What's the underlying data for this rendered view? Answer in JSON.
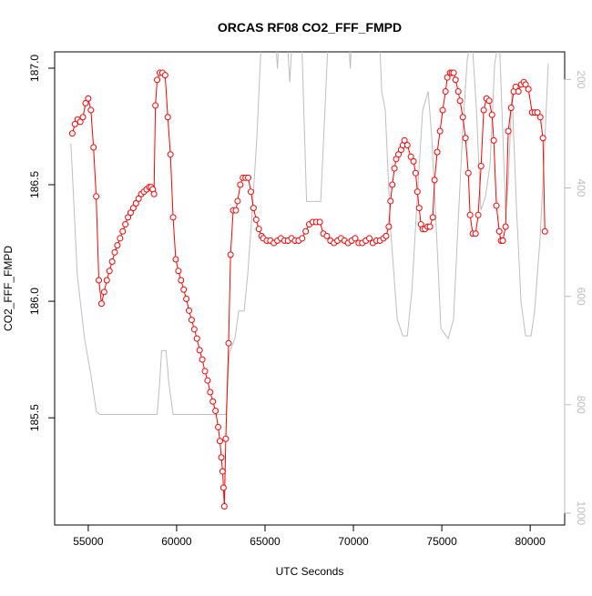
{
  "chart_data": {
    "type": "line",
    "title": "ORCAS RF08 CO2_FFF_FMPD",
    "x_label": "UTC Seconds",
    "y_label": "CO2_FFF_FMPD",
    "xlim": [
      53100,
      81950
    ],
    "xticks": [
      55000,
      60000,
      65000,
      70000,
      75000,
      80000
    ],
    "ylim": [
      185.04,
      187.07
    ],
    "yticks": [
      {
        "value": 185.5,
        "label": "185.5"
      },
      {
        "value": 186,
        "label": "186.0"
      },
      {
        "value": 186.5,
        "label": "186.5"
      },
      {
        "value": 187,
        "label": "187.0"
      }
    ],
    "y2lim": [
      1022,
      149
    ],
    "y2ticks": [
      200,
      400,
      600,
      800,
      1000
    ],
    "series": [
      {
        "color": "#ff0000",
        "markers": true,
        "x": [
          54100,
          54250,
          54400,
          54550,
          54700,
          54850,
          55000,
          55150,
          55300,
          55450,
          55600,
          55750,
          55900,
          56050,
          56200,
          56350,
          56500,
          56650,
          56800,
          56950,
          57100,
          57250,
          57400,
          57550,
          57700,
          57850,
          58000,
          58150,
          58300,
          58450,
          58550,
          58650,
          58720,
          58800,
          58900,
          59050,
          59200,
          59350,
          59500,
          59650,
          59800,
          59950,
          60100,
          60250,
          60400,
          60550,
          60700,
          60850,
          61000,
          61150,
          61300,
          61450,
          61600,
          61750,
          61900,
          62050,
          62200,
          62350,
          62450,
          62530,
          62600,
          62650,
          62700,
          62780,
          62940,
          63050,
          63200,
          63350,
          63450,
          63600,
          63750,
          63900,
          64050,
          64200,
          64350,
          64500,
          64650,
          64800,
          64900,
          65100,
          65300,
          65500,
          65700,
          65900,
          66100,
          66300,
          66500,
          66700,
          66900,
          67100,
          67300,
          67500,
          67700,
          67900,
          68100,
          68300,
          68500,
          68700,
          68900,
          69100,
          69300,
          69500,
          69700,
          69900,
          70100,
          70300,
          70500,
          70700,
          70900,
          71100,
          71300,
          71500,
          71700,
          71850,
          72000,
          72100,
          72200,
          72320,
          72420,
          72550,
          72700,
          72800,
          72890,
          73050,
          73250,
          73400,
          73520,
          73620,
          73720,
          73820,
          73920,
          74050,
          74200,
          74330,
          74490,
          74590,
          74740,
          74900,
          75050,
          75210,
          75310,
          75470,
          75570,
          75670,
          75780,
          75930,
          76030,
          76190,
          76340,
          76500,
          76600,
          76750,
          76910,
          77060,
          77220,
          77370,
          77530,
          77680,
          77840,
          77940,
          78090,
          78250,
          78350,
          78450,
          78610,
          78760,
          78920,
          79070,
          79180,
          79330,
          79490,
          79640,
          79740,
          79900,
          80110,
          80260,
          80410,
          80570,
          80720,
          80830
        ],
        "values": [
          186.72,
          186.76,
          186.78,
          186.77,
          186.79,
          186.85,
          186.87,
          186.82,
          186.66,
          186.45,
          186.09,
          185.99,
          186.04,
          186.09,
          186.13,
          186.17,
          186.21,
          186.24,
          186.27,
          186.3,
          186.33,
          186.36,
          186.38,
          186.4,
          186.42,
          186.44,
          186.46,
          186.47,
          186.48,
          186.49,
          186.49,
          186.48,
          186.46,
          186.84,
          186.95,
          186.98,
          186.98,
          186.97,
          186.79,
          186.63,
          186.36,
          186.18,
          186.13,
          186.09,
          186.05,
          186.01,
          185.96,
          185.92,
          185.88,
          185.84,
          185.79,
          185.75,
          185.7,
          185.66,
          185.61,
          185.57,
          185.53,
          185.46,
          185.4,
          185.33,
          185.27,
          185.2,
          185.12,
          185.41,
          185.82,
          186.2,
          186.39,
          186.39,
          186.43,
          186.5,
          186.53,
          186.53,
          186.53,
          186.47,
          186.4,
          186.35,
          186.31,
          186.28,
          186.27,
          186.26,
          186.26,
          186.25,
          186.26,
          186.27,
          186.26,
          186.26,
          186.27,
          186.26,
          186.26,
          186.27,
          186.3,
          186.33,
          186.34,
          186.34,
          186.34,
          186.29,
          186.28,
          186.26,
          186.25,
          186.26,
          186.27,
          186.26,
          186.25,
          186.26,
          186.27,
          186.25,
          186.25,
          186.26,
          186.27,
          186.25,
          186.26,
          186.26,
          186.27,
          186.28,
          186.32,
          186.43,
          186.5,
          186.57,
          186.61,
          186.63,
          186.65,
          186.67,
          186.69,
          186.67,
          186.62,
          186.6,
          186.55,
          186.47,
          186.4,
          186.33,
          186.31,
          186.31,
          186.32,
          186.32,
          186.36,
          186.52,
          186.64,
          186.73,
          186.82,
          186.9,
          186.96,
          186.98,
          186.98,
          186.98,
          186.95,
          186.9,
          186.86,
          186.79,
          186.7,
          186.55,
          186.37,
          186.29,
          186.29,
          186.37,
          186.58,
          186.82,
          186.87,
          186.86,
          186.8,
          186.69,
          186.41,
          186.3,
          186.26,
          186.26,
          186.32,
          186.73,
          186.83,
          186.9,
          186.92,
          186.9,
          186.93,
          186.94,
          186.93,
          186.91,
          186.81,
          186.81,
          186.81,
          186.79,
          186.7,
          186.3
        ]
      },
      {
        "color": "#bebebe",
        "markers": false,
        "axis": "y2",
        "x": [
          54020,
          54380,
          54790,
          55150,
          55460,
          55670,
          58900,
          59040,
          59150,
          59400,
          59560,
          59800,
          62790,
          62990,
          63300,
          63510,
          63820,
          64020,
          64280,
          64540,
          64800,
          65000,
          65550,
          65700,
          65850,
          66150,
          66250,
          66400,
          66550,
          66900,
          67050,
          67350,
          68150,
          68400,
          68600,
          68800,
          69700,
          69820,
          69950,
          70300,
          71400,
          71600,
          71800,
          72100,
          72480,
          72800,
          73050,
          73300,
          73660,
          73920,
          74230,
          74430,
          74690,
          74950,
          75360,
          75660,
          75930,
          76190,
          76440,
          76700,
          76960,
          77210,
          77470,
          77730,
          77990,
          78250,
          78400,
          78610,
          78760,
          78970,
          79230,
          79480,
          79740,
          80050,
          80250,
          80560,
          80770,
          81020
        ],
        "values": [
          318,
          560,
          678,
          745,
          813,
          818,
          818,
          760,
          700,
          700,
          760,
          818,
          818,
          703,
          678,
          627,
          627,
          560,
          441,
          306,
          120,
          60,
          100,
          180,
          100,
          60,
          120,
          205,
          120,
          60,
          100,
          425,
          425,
          250,
          100,
          60,
          100,
          180,
          100,
          60,
          60,
          222,
          256,
          475,
          643,
          673,
          673,
          593,
          391,
          256,
          222,
          306,
          475,
          660,
          678,
          643,
          460,
          290,
          163,
          120,
          256,
          441,
          416,
          357,
          171,
          120,
          256,
          441,
          391,
          222,
          441,
          610,
          673,
          673,
          627,
          492,
          357,
          171
        ]
      }
    ]
  }
}
